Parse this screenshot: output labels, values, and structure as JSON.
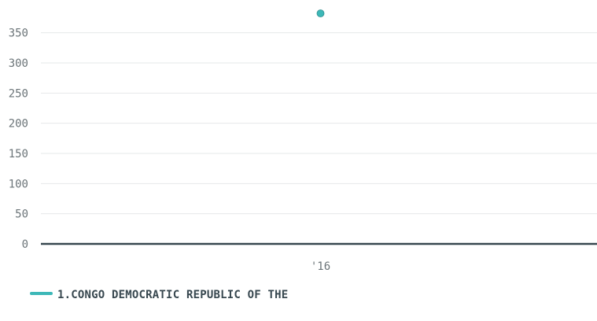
{
  "chart_data": {
    "type": "scatter",
    "x_tick_labels": [
      "'16"
    ],
    "y_ticks": [
      "0",
      "50",
      "100",
      "150",
      "200",
      "250",
      "300",
      "350"
    ],
    "ylim": [
      0,
      390
    ],
    "grid": true,
    "legend_position": "bottom-left",
    "series": [
      {
        "name": "1.CONGO DEMOCRATIC REPUBLIC OF THE",
        "color": "#3db8b8",
        "points": [
          {
            "x": "'16",
            "y": 390
          }
        ]
      }
    ]
  },
  "colors": {
    "grid": "#e6e8e9",
    "baseline": "#37474f",
    "tick_text": "#6b7478",
    "legend_text": "#37474f"
  }
}
